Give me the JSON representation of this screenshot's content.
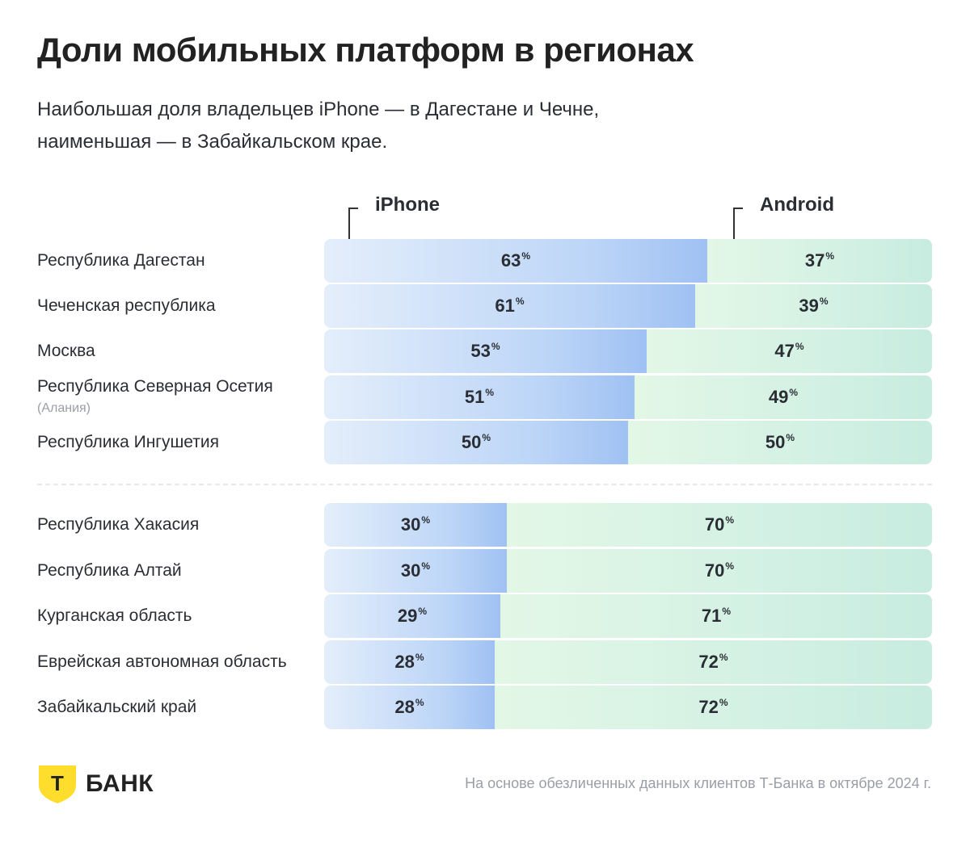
{
  "title": "Доли мобильных платформ в регионах",
  "subtitle_lines": [
    "Наибольшая доля владельцев iPhone — в Дагестане и Чечне,",
    "наименьшая — в Забайкальском крае."
  ],
  "footnote": "На основе обезличенных данных клиентов Т-Банка в октябре 2024 г.",
  "brand": {
    "name": "БАНК",
    "logo_letter": "Т",
    "logo_color": "#ffdd2d"
  },
  "colors": {
    "iphone": "#a9c8f4",
    "android": "#cdeee0"
  },
  "percent_sign": "%",
  "chart_data": {
    "type": "bar",
    "stacked": "horizontal-100",
    "series": [
      {
        "name": "iPhone",
        "values": [
          63,
          61,
          53,
          51,
          50,
          30,
          30,
          29,
          28,
          28
        ]
      },
      {
        "name": "Android",
        "values": [
          37,
          39,
          47,
          49,
          50,
          70,
          70,
          71,
          72,
          72
        ]
      }
    ],
    "categories": [
      "Республика Дагестан",
      "Чеченская республика",
      "Москва",
      "Республика Северная Осетия",
      "Республика Ингушетия",
      "Республика Хакасия",
      "Республика Алтай",
      "Курганская область",
      "Еврейская автономная область",
      "Забайкальский край"
    ],
    "category_notes": [
      "",
      "",
      "",
      "(Алания)",
      "",
      "",
      "",
      "",
      "",
      ""
    ],
    "groups": [
      "top",
      "top",
      "top",
      "top",
      "top",
      "bottom",
      "bottom",
      "bottom",
      "bottom",
      "bottom"
    ],
    "unit": "%",
    "ylim": [
      0,
      100
    ]
  }
}
